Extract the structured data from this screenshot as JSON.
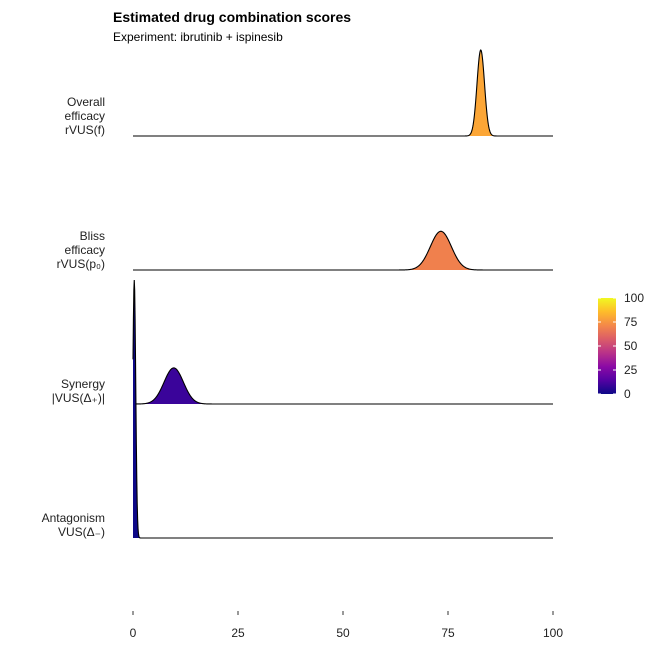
{
  "chart_data": {
    "type": "area",
    "subtype": "ridgeline",
    "title": "Estimated drug combination scores",
    "subtitle": "Experiment: ibrutinib + ispinesib",
    "xlim": [
      0,
      100
    ],
    "x_ticks": [
      "0",
      "25",
      "50",
      "75",
      "100"
    ],
    "grid": false,
    "series": [
      {
        "label_lines": [
          "Overall",
          "efficacy",
          "rVUS(f)"
        ],
        "peak_x": 82.8,
        "spread": 0.9,
        "relative_height": 1.0,
        "color_value": 83,
        "color": "#FCA636"
      },
      {
        "label_lines": [
          "Bliss",
          "efficacy",
          "rVUS(p₀)"
        ],
        "peak_x": 73.3,
        "spread": 2.5,
        "relative_height": 0.45,
        "color_value": 73,
        "color": "#F0804D"
      },
      {
        "label_lines": [
          "Synergy",
          "|VUS(Δ₊)|"
        ],
        "peak_x": 9.7,
        "spread": 2.3,
        "relative_height": 0.42,
        "color_value": 10,
        "color": "#3A049A"
      },
      {
        "label_lines": [
          "Antagonism",
          "VUS(Δ₋)"
        ],
        "peak_x": 0.3,
        "spread": 0.35,
        "relative_height": 3.0,
        "color_value": 0,
        "color": "#0D0887"
      }
    ],
    "legend": {
      "placement": "right",
      "scale": "plasma",
      "range": [
        0,
        100
      ],
      "ticks": [
        "0",
        "25",
        "50",
        "75",
        "100"
      ],
      "colors": [
        "#0D0887",
        "#5402A3",
        "#8B0AA5",
        "#B93289",
        "#DB5C68",
        "#F48849",
        "#FEBC2A",
        "#F0F921"
      ]
    }
  }
}
